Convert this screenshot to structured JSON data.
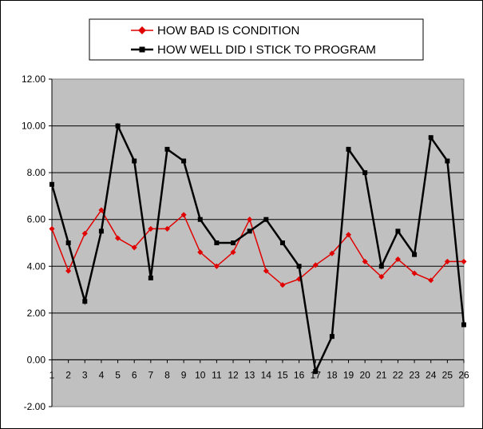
{
  "chart_data": {
    "type": "line",
    "title": "",
    "xlabel": "",
    "ylabel": "",
    "categories": [
      "1",
      "2",
      "3",
      "4",
      "5",
      "6",
      "7",
      "8",
      "9",
      "10",
      "11",
      "12",
      "13",
      "14",
      "15",
      "16",
      "17",
      "18",
      "19",
      "20",
      "21",
      "22",
      "23",
      "24",
      "25",
      "26"
    ],
    "ylim": [
      -2,
      12
    ],
    "yticks": [
      "12.00",
      "10.00",
      "8.00",
      "6.00",
      "4.00",
      "2.00",
      "0.00",
      "-2.00"
    ],
    "grid": true,
    "legend": "top",
    "plot_background": "#c0c0c0",
    "series": [
      {
        "name": "HOW BAD IS CONDITION",
        "color": "#e00000",
        "marker": "diamond",
        "values": [
          5.6,
          3.8,
          5.4,
          6.4,
          5.2,
          4.8,
          5.6,
          5.6,
          6.2,
          4.6,
          4.0,
          4.6,
          6.0,
          3.8,
          3.2,
          3.45,
          4.05,
          4.55,
          5.35,
          4.2,
          3.55,
          4.3,
          3.7,
          3.4,
          4.2,
          4.2
        ]
      },
      {
        "name": "HOW WELL DID I STICK TO PROGRAM",
        "color": "#000000",
        "marker": "square",
        "values": [
          7.5,
          5.0,
          2.5,
          5.5,
          10.0,
          8.5,
          3.5,
          9.0,
          8.5,
          6.0,
          5.0,
          5.0,
          5.5,
          6.0,
          5.0,
          4.0,
          -0.5,
          1.0,
          9.0,
          8.0,
          4.0,
          5.5,
          4.5,
          9.5,
          8.5,
          1.5
        ]
      }
    ]
  }
}
